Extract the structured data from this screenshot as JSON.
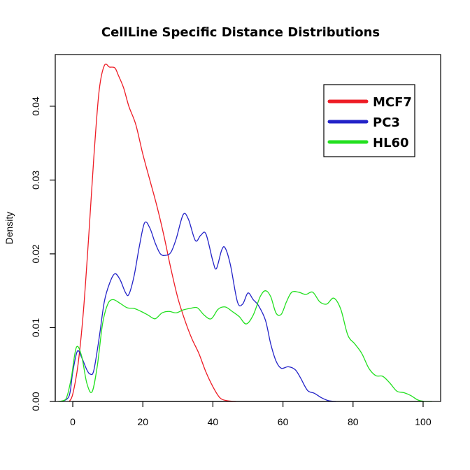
{
  "chart_data": {
    "type": "line",
    "title": "CellLine Specific Distance Distributions",
    "xlabel": "",
    "ylabel": "Density",
    "xlim": [
      -5,
      105
    ],
    "ylim": [
      0,
      0.047
    ],
    "x_ticks": [
      {
        "value": 0,
        "label": "0"
      },
      {
        "value": 20,
        "label": "20"
      },
      {
        "value": 40,
        "label": "40"
      },
      {
        "value": 60,
        "label": "60"
      },
      {
        "value": 80,
        "label": "80"
      },
      {
        "value": 100,
        "label": "100"
      }
    ],
    "y_ticks": [
      {
        "value": 0.0,
        "label": "0.00"
      },
      {
        "value": 0.01,
        "label": "0.01"
      },
      {
        "value": 0.02,
        "label": "0.02"
      },
      {
        "value": 0.03,
        "label": "0.03"
      },
      {
        "value": 0.04,
        "label": "0.04"
      }
    ],
    "grid": false,
    "legend_position": "top-right",
    "series": [
      {
        "name": "MCF7",
        "color": "#ee1c25",
        "points": [
          [
            -1.0,
            0.0
          ],
          [
            0.0,
            0.001
          ],
          [
            1.5,
            0.005
          ],
          [
            3.0,
            0.012
          ],
          [
            4.5,
            0.022
          ],
          [
            6.0,
            0.033
          ],
          [
            7.5,
            0.042
          ],
          [
            9.0,
            0.0455
          ],
          [
            10.5,
            0.0453
          ],
          [
            12.0,
            0.0452
          ],
          [
            13.0,
            0.0442
          ],
          [
            14.5,
            0.0425
          ],
          [
            16.0,
            0.04
          ],
          [
            18.0,
            0.0375
          ],
          [
            20.0,
            0.0335
          ],
          [
            22.0,
            0.03
          ],
          [
            24.0,
            0.0265
          ],
          [
            26.0,
            0.0225
          ],
          [
            28.0,
            0.018
          ],
          [
            30.0,
            0.014
          ],
          [
            32.0,
            0.011
          ],
          [
            34.0,
            0.0085
          ],
          [
            36.0,
            0.0065
          ],
          [
            38.0,
            0.004
          ],
          [
            40.0,
            0.002
          ],
          [
            42.0,
            0.0005
          ],
          [
            44.0,
            0.0001
          ],
          [
            46.5,
            0.0
          ]
        ]
      },
      {
        "name": "PC3",
        "color": "#2323c8",
        "points": [
          [
            -3.0,
            0.0
          ],
          [
            -1.0,
            0.0008
          ],
          [
            0.0,
            0.004
          ],
          [
            1.3,
            0.0068
          ],
          [
            2.5,
            0.006
          ],
          [
            4.0,
            0.0043
          ],
          [
            5.0,
            0.0037
          ],
          [
            6.0,
            0.0042
          ],
          [
            7.5,
            0.0085
          ],
          [
            9.0,
            0.0135
          ],
          [
            10.5,
            0.016
          ],
          [
            12.0,
            0.0173
          ],
          [
            13.5,
            0.0165
          ],
          [
            15.0,
            0.0148
          ],
          [
            16.0,
            0.0145
          ],
          [
            17.5,
            0.017
          ],
          [
            19.0,
            0.021
          ],
          [
            20.5,
            0.0242
          ],
          [
            22.0,
            0.0235
          ],
          [
            23.5,
            0.0215
          ],
          [
            25.0,
            0.02
          ],
          [
            26.5,
            0.0198
          ],
          [
            28.0,
            0.0202
          ],
          [
            29.5,
            0.022
          ],
          [
            31.5,
            0.0253
          ],
          [
            33.0,
            0.0247
          ],
          [
            35.0,
            0.0218
          ],
          [
            36.5,
            0.0225
          ],
          [
            38.0,
            0.0227
          ],
          [
            40.0,
            0.019
          ],
          [
            41.0,
            0.018
          ],
          [
            42.5,
            0.0205
          ],
          [
            43.5,
            0.0208
          ],
          [
            45.0,
            0.0185
          ],
          [
            47.0,
            0.0135
          ],
          [
            48.5,
            0.0132
          ],
          [
            50.0,
            0.0147
          ],
          [
            51.5,
            0.0138
          ],
          [
            53.0,
            0.013
          ],
          [
            55.0,
            0.011
          ],
          [
            56.5,
            0.0078
          ],
          [
            58.0,
            0.0055
          ],
          [
            59.5,
            0.0045
          ],
          [
            61.5,
            0.0047
          ],
          [
            63.5,
            0.0043
          ],
          [
            65.0,
            0.0032
          ],
          [
            67.0,
            0.0015
          ],
          [
            69.0,
            0.0011
          ],
          [
            71.0,
            0.0005
          ],
          [
            73.0,
            0.0001
          ],
          [
            75.0,
            0.0
          ]
        ]
      },
      {
        "name": "HL60",
        "color": "#22e01f",
        "points": [
          [
            -4.0,
            0.0
          ],
          [
            -2.0,
            0.0003
          ],
          [
            -0.5,
            0.003
          ],
          [
            1.0,
            0.0073
          ],
          [
            2.5,
            0.0062
          ],
          [
            4.0,
            0.0025
          ],
          [
            5.5,
            0.0013
          ],
          [
            7.0,
            0.0048
          ],
          [
            8.5,
            0.0105
          ],
          [
            10.0,
            0.0132
          ],
          [
            11.5,
            0.0138
          ],
          [
            13.5,
            0.0133
          ],
          [
            15.5,
            0.0127
          ],
          [
            17.5,
            0.0126
          ],
          [
            19.5,
            0.0122
          ],
          [
            21.5,
            0.0117
          ],
          [
            23.5,
            0.0112
          ],
          [
            25.5,
            0.012
          ],
          [
            27.5,
            0.0122
          ],
          [
            29.5,
            0.012
          ],
          [
            31.5,
            0.0124
          ],
          [
            33.5,
            0.0126
          ],
          [
            35.5,
            0.0127
          ],
          [
            37.5,
            0.0117
          ],
          [
            39.5,
            0.0112
          ],
          [
            41.5,
            0.0125
          ],
          [
            43.5,
            0.0128
          ],
          [
            45.5,
            0.0122
          ],
          [
            47.5,
            0.0115
          ],
          [
            49.5,
            0.0105
          ],
          [
            51.5,
            0.0117
          ],
          [
            53.5,
            0.0142
          ],
          [
            55.0,
            0.015
          ],
          [
            56.5,
            0.0142
          ],
          [
            58.0,
            0.012
          ],
          [
            59.5,
            0.0118
          ],
          [
            61.0,
            0.0135
          ],
          [
            62.5,
            0.0148
          ],
          [
            64.5,
            0.0148
          ],
          [
            66.5,
            0.0145
          ],
          [
            68.5,
            0.0148
          ],
          [
            70.5,
            0.0135
          ],
          [
            72.5,
            0.0132
          ],
          [
            74.5,
            0.014
          ],
          [
            76.5,
            0.0125
          ],
          [
            78.5,
            0.009
          ],
          [
            80.5,
            0.0078
          ],
          [
            82.5,
            0.0065
          ],
          [
            84.5,
            0.0045
          ],
          [
            86.5,
            0.0035
          ],
          [
            88.5,
            0.0034
          ],
          [
            90.5,
            0.0025
          ],
          [
            92.5,
            0.0014
          ],
          [
            94.5,
            0.0012
          ],
          [
            96.5,
            0.0008
          ],
          [
            98.5,
            0.0002
          ],
          [
            100.5,
            0.0
          ],
          [
            102.5,
            0.0
          ]
        ]
      }
    ]
  }
}
